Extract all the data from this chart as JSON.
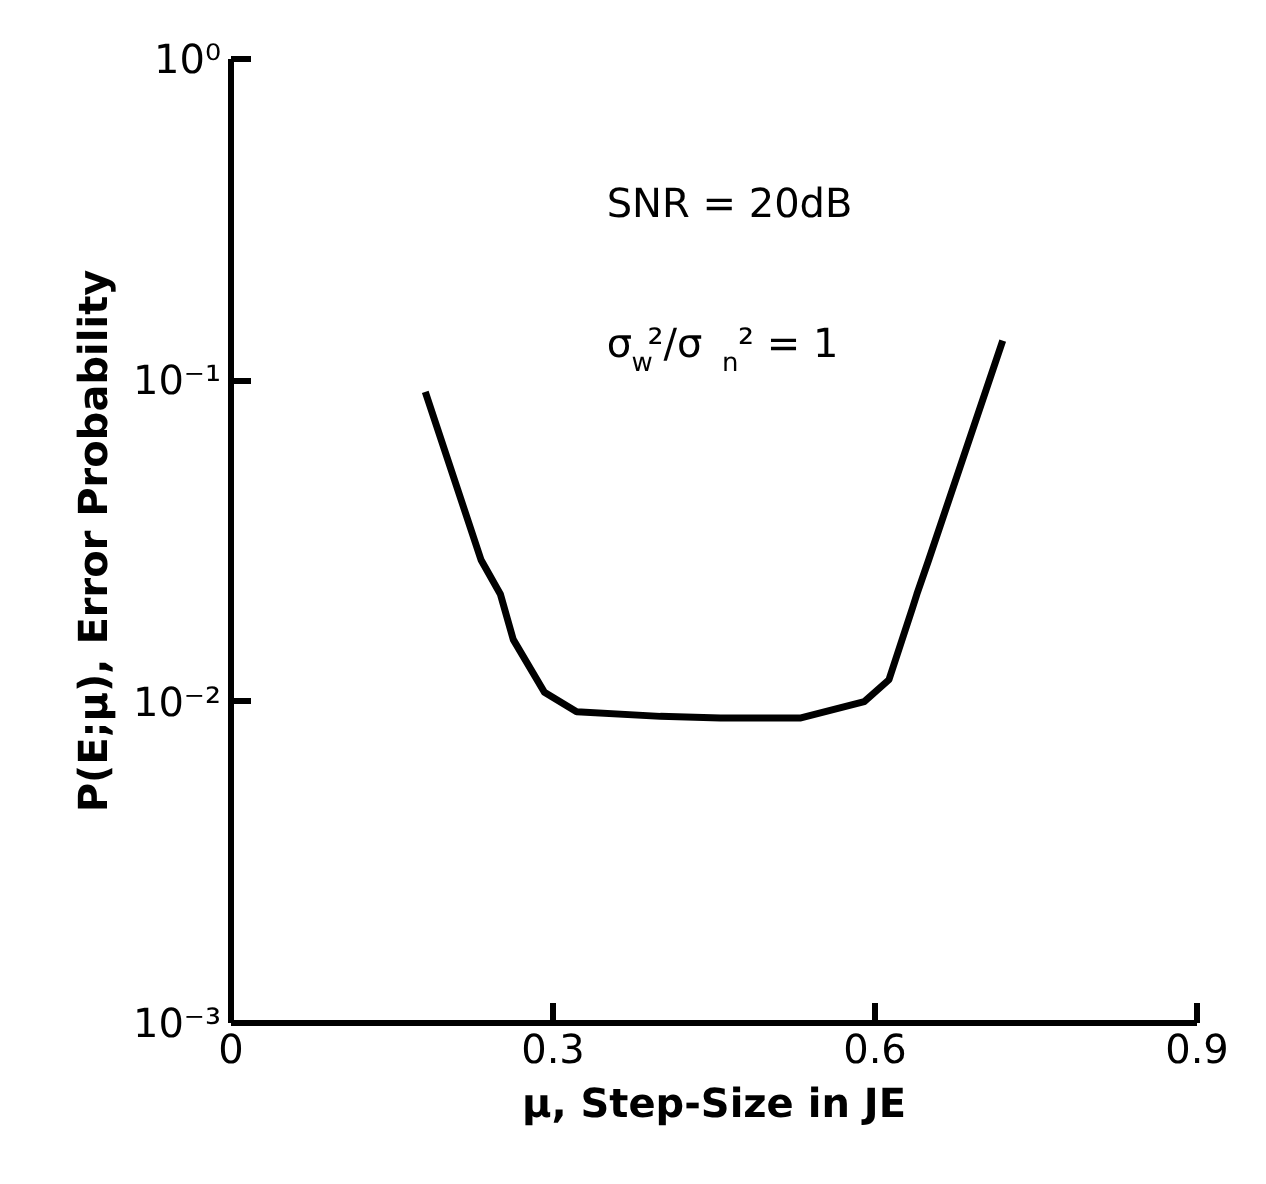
{
  "chart_data": {
    "type": "line",
    "xlabel": "μ, Step-Size in JE",
    "ylabel": "P(E;μ), Error Probability",
    "annotations": [
      "SNR = 20dB",
      "σ$_{w}$²/σ$_{n}$² = 1"
    ],
    "log": "y",
    "grid": false,
    "marker": "none",
    "line_style": "solid",
    "xlim": [
      0,
      0.9
    ],
    "xticks": [
      0,
      0.3,
      0.6,
      0.9
    ],
    "ylim": [
      0.001,
      1
    ],
    "yticks": [
      {
        "value": 0.001,
        "label": "10⁻³"
      },
      {
        "value": 0.01,
        "label": "10⁻²"
      },
      {
        "value": 0.1,
        "label": "10⁻¹"
      },
      {
        "value": 1,
        "label": "10⁰"
      }
    ],
    "series": [
      {
        "color": "#000000",
        "x": [
          0.181,
          0.233,
          0.251,
          0.263,
          0.292,
          0.322,
          0.4,
          0.456,
          0.531,
          0.59,
          0.613,
          0.635,
          0.639,
          0.65,
          0.719
        ],
        "values": [
          0.092,
          0.0276,
          0.0216,
          0.0156,
          0.0107,
          0.0093,
          0.009,
          0.0089,
          0.0089,
          0.01,
          0.0117,
          0.0196,
          0.0216,
          0.0276,
          0.133
        ]
      }
    ]
  }
}
